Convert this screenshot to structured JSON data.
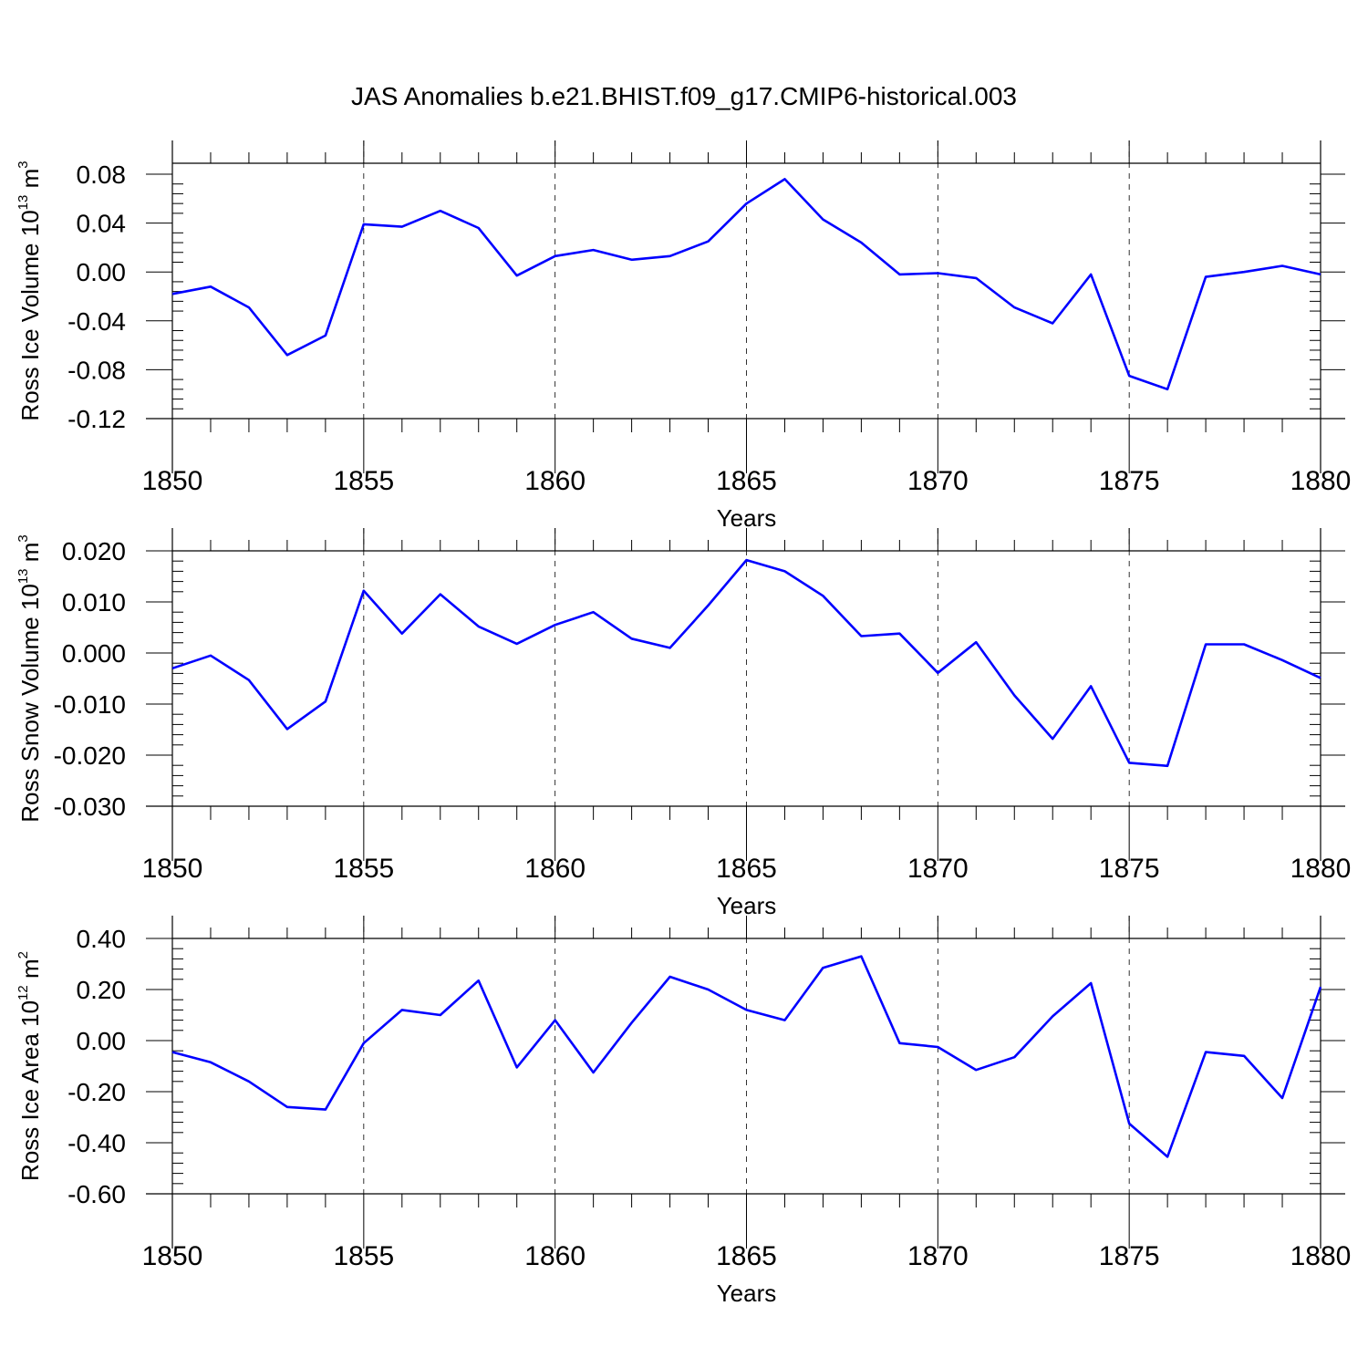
{
  "title": "JAS Anomalies b.e21.BHIST.f09_g17.CMIP6-historical.003",
  "line_color": "#0000ff",
  "chart_data": [
    {
      "type": "line",
      "xlabel": "Years",
      "ylabel": "Ross Ice Volume 10<sup>13</sup> m<sup>3</sup>",
      "ylabel_parts": [
        "Ross Ice Volume 10",
        "13",
        " m",
        "3"
      ],
      "xlim": [
        1850,
        1880
      ],
      "ylim": [
        -0.12,
        0.09
      ],
      "x_ticks": [
        1850,
        1855,
        1860,
        1865,
        1870,
        1875,
        1880
      ],
      "x_tick_labels": [
        "1850",
        "1855",
        "1860",
        "1865",
        "1870",
        "1875",
        "1880"
      ],
      "y_ticks": [
        -0.12,
        -0.08,
        -0.04,
        0.0,
        0.04,
        0.08
      ],
      "y_tick_labels": [
        "-0.12",
        "-0.08",
        "-0.04",
        "0.00",
        "0.04",
        "0.08"
      ],
      "grid_x": true,
      "x": [
        1850,
        1851,
        1852,
        1853,
        1854,
        1855,
        1856,
        1857,
        1858,
        1859,
        1860,
        1861,
        1862,
        1863,
        1864,
        1865,
        1866,
        1867,
        1868,
        1869,
        1870,
        1871,
        1872,
        1873,
        1874,
        1875,
        1876,
        1877,
        1878,
        1879,
        1880
      ],
      "y": [
        -0.018,
        -0.012,
        -0.029,
        -0.068,
        -0.052,
        0.039,
        0.037,
        0.05,
        0.036,
        -0.003,
        0.013,
        0.018,
        0.01,
        0.013,
        0.025,
        0.056,
        0.076,
        0.043,
        0.024,
        -0.002,
        -0.001,
        -0.005,
        -0.029,
        -0.042,
        -0.002,
        -0.085,
        -0.096,
        -0.004,
        0.0,
        0.005,
        -0.002
      ]
    },
    {
      "type": "line",
      "xlabel": "Years",
      "ylabel": "Ross Snow Volume 10<sup>13</sup> m<sup>3</sup>",
      "ylabel_parts": [
        "Ross Snow Volume 10",
        "13",
        " m",
        "3"
      ],
      "xlim": [
        1850,
        1880
      ],
      "ylim": [
        -0.03,
        0.02
      ],
      "x_ticks": [
        1850,
        1855,
        1860,
        1865,
        1870,
        1875,
        1880
      ],
      "x_tick_labels": [
        "1850",
        "1855",
        "1860",
        "1865",
        "1870",
        "1875",
        "1880"
      ],
      "y_ticks": [
        -0.03,
        -0.02,
        -0.01,
        0.0,
        0.01,
        0.02
      ],
      "y_tick_labels": [
        "-0.030",
        "-0.020",
        "-0.010",
        "0.000",
        "0.010",
        "0.020"
      ],
      "grid_x": true,
      "x": [
        1850,
        1851,
        1852,
        1853,
        1854,
        1855,
        1856,
        1857,
        1858,
        1859,
        1860,
        1861,
        1862,
        1863,
        1864,
        1865,
        1866,
        1867,
        1868,
        1869,
        1870,
        1871,
        1872,
        1873,
        1874,
        1875,
        1876,
        1877,
        1878,
        1879,
        1880
      ],
      "y": [
        -0.003,
        -0.0005,
        -0.0053,
        -0.0149,
        -0.0095,
        0.0122,
        0.0038,
        0.0115,
        0.0052,
        0.0018,
        0.0055,
        0.008,
        0.0028,
        0.001,
        0.0093,
        0.0182,
        0.016,
        0.0112,
        0.0033,
        0.0038,
        -0.0039,
        0.0021,
        -0.0083,
        -0.0168,
        -0.0065,
        -0.0215,
        -0.0221,
        0.0017,
        0.0017,
        -0.0014,
        -0.0049
      ]
    },
    {
      "type": "line",
      "xlabel": "Years",
      "ylabel": "Ross Ice Area 10<sup>12</sup> m<sup>2</sup>",
      "ylabel_parts": [
        "Ross Ice Area 10",
        "12",
        " m",
        "2"
      ],
      "xlim": [
        1850,
        1880
      ],
      "ylim": [
        -0.6,
        0.4
      ],
      "x_ticks": [
        1850,
        1855,
        1860,
        1865,
        1870,
        1875,
        1880
      ],
      "x_tick_labels": [
        "1850",
        "1855",
        "1860",
        "1865",
        "1870",
        "1875",
        "1880"
      ],
      "y_ticks": [
        -0.6,
        -0.4,
        -0.2,
        0.0,
        0.2,
        0.4
      ],
      "y_tick_labels": [
        "-0.60",
        "-0.40",
        "-0.20",
        "0.00",
        "0.20",
        "0.40"
      ],
      "grid_x": true,
      "x": [
        1850,
        1851,
        1852,
        1853,
        1854,
        1855,
        1856,
        1857,
        1858,
        1859,
        1860,
        1861,
        1862,
        1863,
        1864,
        1865,
        1866,
        1867,
        1868,
        1869,
        1870,
        1871,
        1872,
        1873,
        1874,
        1875,
        1876,
        1877,
        1878,
        1879,
        1880
      ],
      "y": [
        -0.045,
        -0.085,
        -0.16,
        -0.26,
        -0.27,
        -0.01,
        0.12,
        0.1,
        0.235,
        -0.105,
        0.08,
        -0.125,
        0.07,
        0.25,
        0.2,
        0.12,
        0.08,
        0.285,
        0.33,
        -0.01,
        -0.025,
        -0.115,
        -0.065,
        0.095,
        0.225,
        -0.325,
        -0.455,
        -0.045,
        -0.06,
        -0.225,
        0.21
      ]
    }
  ]
}
